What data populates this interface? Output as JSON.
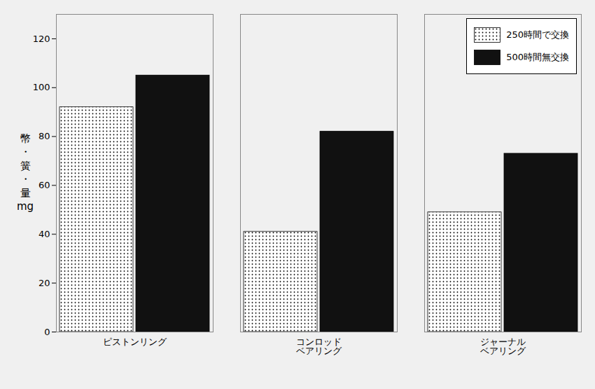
{
  "chart_data": {
    "type": "bar",
    "categories": [
      "ピストンリング",
      "コンロッド\nベアリング",
      "ジャーナル\nベアリング"
    ],
    "series": [
      {
        "name": "250時間で交換",
        "color": "#ffffff",
        "values": [
          92,
          41,
          49
        ]
      },
      {
        "name": "500時間無交換",
        "color": "#111111",
        "values": [
          105,
          82,
          73
        ]
      }
    ],
    "ylabel": "幣\n・\n簧\n・\n量\nmg",
    "ylim": [
      0,
      130
    ],
    "yticks": [
      0,
      20,
      40,
      60,
      80,
      100,
      120
    ],
    "grid": false,
    "legend": "upper right"
  }
}
